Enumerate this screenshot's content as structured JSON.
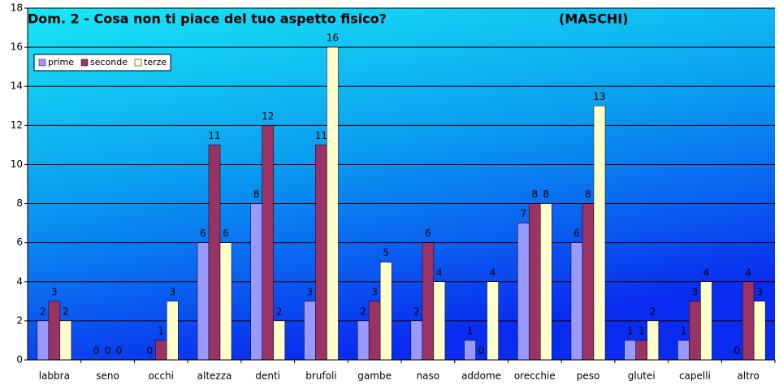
{
  "chart_data": {
    "type": "bar",
    "title": "Dom. 2 - Cosa non ti piace del tuo aspetto fisico?",
    "subtitle": "(MASCHI)",
    "categories": [
      "labbra",
      "seno",
      "occhi",
      "altezza",
      "denti",
      "brufoli",
      "gambe",
      "naso",
      "addome",
      "orecchie",
      "peso",
      "glutei",
      "capelli",
      "altro"
    ],
    "series": [
      {
        "name": "prime",
        "color": "#9999ff",
        "values": [
          2,
          0,
          0,
          6,
          8,
          3,
          2,
          2,
          1,
          7,
          6,
          1,
          1,
          0
        ]
      },
      {
        "name": "seconde",
        "color": "#993366",
        "values": [
          3,
          0,
          1,
          11,
          12,
          11,
          3,
          6,
          0,
          8,
          8,
          1,
          3,
          4
        ]
      },
      {
        "name": "terze",
        "color": "#ffffcc",
        "values": [
          2,
          0,
          3,
          6,
          2,
          16,
          5,
          4,
          4,
          8,
          13,
          2,
          4,
          3
        ]
      }
    ],
    "ylim": [
      0,
      18
    ],
    "yticks": [
      0,
      2,
      4,
      6,
      8,
      10,
      12,
      14,
      16,
      18
    ],
    "grid": true,
    "legend": "top-left"
  }
}
